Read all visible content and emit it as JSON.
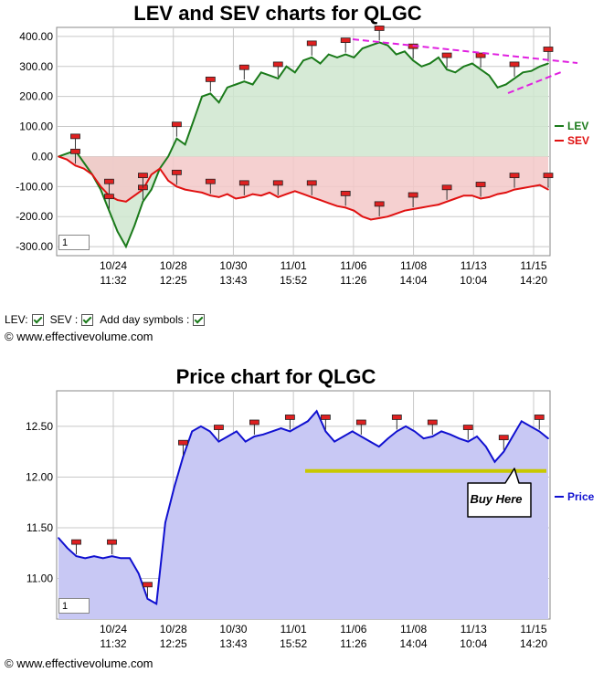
{
  "chart_data": [
    {
      "type": "line",
      "title": "LEV and SEV charts for QLGC",
      "xlabel": "",
      "ylabel": "",
      "ylim": [
        -330,
        430
      ],
      "yticks": [
        "400.00",
        "300.00",
        "200.00",
        "100.00",
        "0.00",
        "-100.00",
        "-200.00",
        "-300.00"
      ],
      "x_tick_labels": [
        [
          "10/24",
          "11:32"
        ],
        [
          "10/28",
          "12:25"
        ],
        [
          "10/30",
          "13:43"
        ],
        [
          "11/01",
          "15:52"
        ],
        [
          "11/06",
          "11:26"
        ],
        [
          "11/08",
          "14:04"
        ],
        [
          "11/13",
          "10:04"
        ],
        [
          "11/15",
          "14:20"
        ]
      ],
      "legend_position": "right",
      "series": [
        {
          "name": "LEV",
          "color": "#1a7a1a",
          "values": [
            0,
            10,
            20,
            -20,
            -60,
            -110,
            -180,
            -250,
            -300,
            -230,
            -150,
            -110,
            -40,
            0,
            60,
            40,
            120,
            200,
            210,
            180,
            230,
            240,
            250,
            240,
            280,
            270,
            260,
            300,
            280,
            320,
            330,
            310,
            340,
            330,
            340,
            330,
            360,
            370,
            380,
            370,
            340,
            350,
            320,
            300,
            310,
            330,
            290,
            280,
            300,
            310,
            290,
            270,
            230,
            240,
            260,
            280,
            285,
            300,
            310
          ]
        },
        {
          "name": "SEV",
          "color": "#e01010",
          "values": [
            0,
            -10,
            -30,
            -40,
            -60,
            -100,
            -130,
            -145,
            -150,
            -130,
            -110,
            -60,
            -40,
            -80,
            -100,
            -110,
            -115,
            -120,
            -130,
            -135,
            -125,
            -140,
            -135,
            -125,
            -130,
            -120,
            -135,
            -125,
            -115,
            -125,
            -135,
            -145,
            -155,
            -165,
            -170,
            -180,
            -200,
            -210,
            -205,
            -200,
            -190,
            -180,
            -175,
            -170,
            -165,
            -160,
            -150,
            -140,
            -130,
            -130,
            -140,
            -135,
            -125,
            -120,
            -110,
            -105,
            -100,
            -95,
            -110
          ]
        }
      ],
      "annotation_color": "#e020e0"
    },
    {
      "type": "line",
      "title": "Price chart for QLGC",
      "xlabel": "",
      "ylabel": "",
      "ylim": [
        10.6,
        12.85
      ],
      "yticks": [
        "12.50",
        "12.00",
        "11.50",
        "11.00"
      ],
      "x_tick_labels": [
        [
          "10/24",
          "11:32"
        ],
        [
          "10/28",
          "12:25"
        ],
        [
          "10/30",
          "13:43"
        ],
        [
          "11/01",
          "15:52"
        ],
        [
          "11/06",
          "11:26"
        ],
        [
          "11/08",
          "14:04"
        ],
        [
          "11/13",
          "10:04"
        ],
        [
          "11/15",
          "14:20"
        ]
      ],
      "legend_position": "right",
      "series": [
        {
          "name": "Price",
          "color": "#1010d0",
          "values": [
            11.4,
            11.3,
            11.22,
            11.2,
            11.22,
            11.2,
            11.22,
            11.2,
            11.2,
            11.05,
            10.8,
            10.75,
            11.55,
            11.9,
            12.2,
            12.45,
            12.5,
            12.45,
            12.35,
            12.4,
            12.45,
            12.35,
            12.4,
            12.42,
            12.45,
            12.48,
            12.45,
            12.5,
            12.55,
            12.65,
            12.45,
            12.35,
            12.4,
            12.45,
            12.4,
            12.35,
            12.3,
            12.38,
            12.45,
            12.5,
            12.45,
            12.38,
            12.4,
            12.45,
            12.42,
            12.38,
            12.35,
            12.4,
            12.3,
            12.15,
            12.25,
            12.4,
            12.55,
            12.5,
            12.45,
            12.38
          ]
        }
      ],
      "annotation": {
        "label": "Buy Here",
        "level": 12.06,
        "line_color": "#c8c800"
      }
    }
  ],
  "controls": {
    "lev_label": "LEV:",
    "sev_label": "SEV :",
    "daysym_label": "Add day symbols :",
    "zoom_value_top": "1",
    "zoom_value_bottom": "1"
  },
  "copyright": "© www.effectivevolume.com"
}
